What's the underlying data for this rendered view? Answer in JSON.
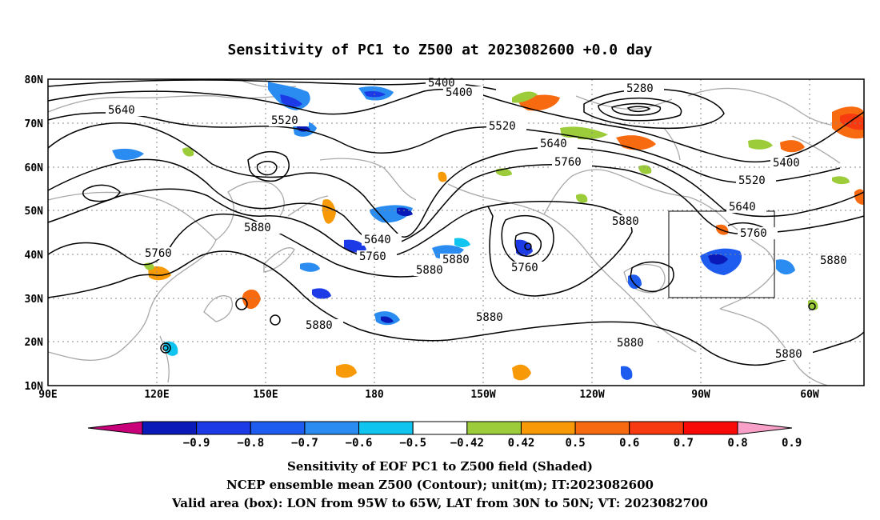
{
  "title": "Sensitivity of PC1 to Z500 at 2023082600 +0.0 day",
  "lat_ticks": [
    "10N",
    "20N",
    "30N",
    "40N",
    "50N",
    "60N",
    "70N",
    "80N"
  ],
  "lon_ticks": [
    "90E",
    "120E",
    "150E",
    "180",
    "150W",
    "120W",
    "90W",
    "60W"
  ],
  "colorbar": {
    "labels": [
      "-0.9",
      "-0.8",
      "-0.7",
      "-0.6",
      "-0.5",
      "-0.42",
      "0.42",
      "0.5",
      "0.6",
      "0.7",
      "0.8",
      "0.9"
    ],
    "colors": [
      "#c8007a",
      "#0a1ab8",
      "#1c3ae6",
      "#1e5cf0",
      "#2a8cf0",
      "#10c4f0",
      "#ffffff",
      "#9ccc3a",
      "#f89a08",
      "#f86a10",
      "#f83a10",
      "#f80a08",
      "#f8a0c8"
    ]
  },
  "contour_labels": {
    "c5400a": "5400",
    "c5400b": "5400",
    "c5280": "5280",
    "c5640a": "5640",
    "c5520a": "5520",
    "c5520b": "5520",
    "c5640b": "5640",
    "c5760a": "5760",
    "c5400c": "5400",
    "c5520c": "5520",
    "c5640c": "5640",
    "c5880a": "5880",
    "c5880b": "5880",
    "c5640d": "5640",
    "c5760b": "5760",
    "c5880c": "5880",
    "c5880d": "5880",
    "c5760c": "5760",
    "c5760d": "5760",
    "c5880e": "5880",
    "c5880f": "5880",
    "c5880g": "5880",
    "c5880h": "5880",
    "c5880i": "5880"
  },
  "captions": {
    "line1": "Sensitivity of EOF PC1 to Z500 field (Shaded)",
    "line2": "NCEP ensemble mean Z500 (Contour); unit(m); IT:2023082600",
    "line3": "Valid area (box): LON from 95W to 65W, LAT from 30N to 50N; VT: 2023082700"
  }
}
